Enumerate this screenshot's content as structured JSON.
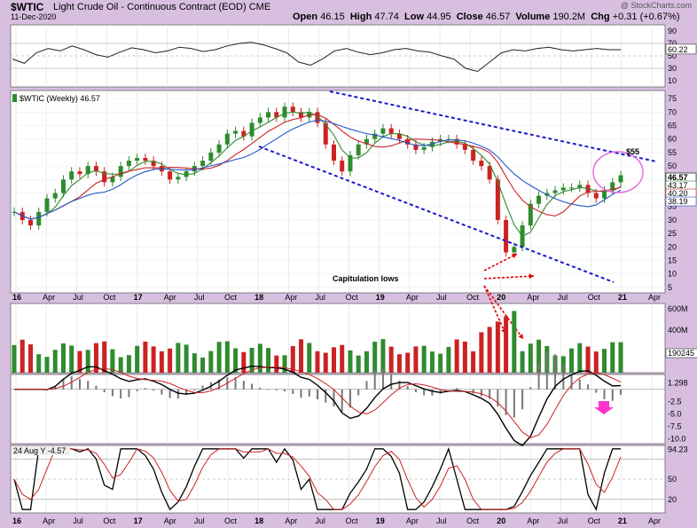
{
  "header": {
    "ticker": "$WTIC",
    "description": "Light Crude Oil - Continuous Contract (EOD)",
    "exchange": "CME",
    "date": "11-Dec-2020",
    "open_label": "Open",
    "open": "46.15",
    "high_label": "High",
    "high": "47.74",
    "low_label": "Low",
    "low": "44.95",
    "close_label": "Close",
    "close": "46.57",
    "volume_label": "Volume",
    "volume": "190.2M",
    "chg_label": "Chg",
    "chg": "+0.31 (+0.67%)",
    "brand": "@ StockCharts.com"
  },
  "colors": {
    "background": "#d8bfe0",
    "panel": "#ffffff",
    "up": "#2e8b2e",
    "down": "#cc2222",
    "trendline": "#1a1acc",
    "annotation_red": "#e00000",
    "circle": "#e070e0",
    "ma_short": "#2e8b2e",
    "ma_mid": "#cc2222",
    "ma_long": "#2255cc"
  },
  "chart_data": [
    {
      "panel": "rsi",
      "type": "line",
      "y_ticks": [
        "90",
        "70",
        "50",
        "30",
        "10"
      ],
      "last_value": "60.22",
      "ylim": [
        0,
        100
      ],
      "values": [
        45,
        38,
        55,
        62,
        58,
        66,
        60,
        52,
        48,
        56,
        63,
        60,
        55,
        58,
        64,
        62,
        57,
        60,
        66,
        70,
        72,
        68,
        62,
        55,
        40,
        35,
        45,
        58,
        62,
        56,
        52,
        55,
        60,
        62,
        58,
        56,
        50,
        45,
        30,
        25,
        40,
        55,
        60,
        58,
        62,
        64,
        60,
        58,
        60,
        62,
        60,
        60
      ]
    },
    {
      "panel": "price",
      "type": "candlestick",
      "title": "$WTIC (Weekly) 46.57",
      "y_ticks": [
        "75",
        "70",
        "65",
        "60",
        "55",
        "50",
        "45",
        "40",
        "35",
        "30",
        "25",
        "20",
        "15",
        "10",
        "5"
      ],
      "ylim": [
        3,
        78
      ],
      "x_ticks": [
        "16",
        "Apr",
        "Jul",
        "Oct",
        "17",
        "Apr",
        "Jul",
        "Oct",
        "18",
        "Apr",
        "Jul",
        "Oct",
        "19",
        "Apr",
        "Jul",
        "Oct",
        "20",
        "Apr",
        "Jul",
        "Oct",
        "21",
        "Apr"
      ],
      "right_labels": [
        "46.57",
        "43.17",
        "40.20",
        "38.19"
      ],
      "closes": [
        33,
        30,
        28,
        33,
        38,
        40,
        45,
        48,
        47,
        50,
        48,
        44,
        46,
        50,
        52,
        53,
        52,
        50,
        48,
        45,
        46,
        48,
        50,
        52,
        55,
        58,
        62,
        63,
        61,
        66,
        68,
        70,
        68,
        72,
        70,
        68,
        70,
        66,
        58,
        52,
        48,
        54,
        58,
        60,
        62,
        64,
        62,
        60,
        58,
        56,
        57,
        59,
        60,
        60,
        58,
        56,
        52,
        50,
        45,
        30,
        18,
        20,
        28,
        36,
        39,
        40,
        41,
        42,
        42,
        43,
        40,
        38,
        41,
        44,
        46.57
      ],
      "annotations": [
        {
          "text": "$55",
          "kind": "target"
        },
        {
          "text": "Capitulation lows",
          "kind": "callout"
        }
      ]
    },
    {
      "panel": "volume",
      "type": "bar",
      "y_ticks": [
        "600M",
        "400M"
      ],
      "last_value": "190245",
      "ylim": [
        0,
        650
      ]
    },
    {
      "panel": "macd",
      "type": "line",
      "y_ticks": [
        "1.298",
        "-2.5",
        "-5.0",
        "-7.5",
        "-10.0"
      ],
      "ylim": [
        -11,
        3
      ]
    },
    {
      "panel": "stochastic",
      "type": "line",
      "label": "24 Aug Y -4.57",
      "y_ticks": [
        "94.23",
        "50",
        "20"
      ],
      "last_value": "94.23",
      "ylim": [
        0,
        100
      ],
      "x_ticks": [
        "16",
        "Apr",
        "Jul",
        "Oct",
        "17",
        "Apr",
        "Jul",
        "Oct",
        "18",
        "Apr",
        "Jul",
        "Oct",
        "19",
        "Apr",
        "Jul",
        "Oct",
        "20",
        "Apr",
        "Jul",
        "Oct",
        "21",
        "Apr"
      ]
    }
  ]
}
